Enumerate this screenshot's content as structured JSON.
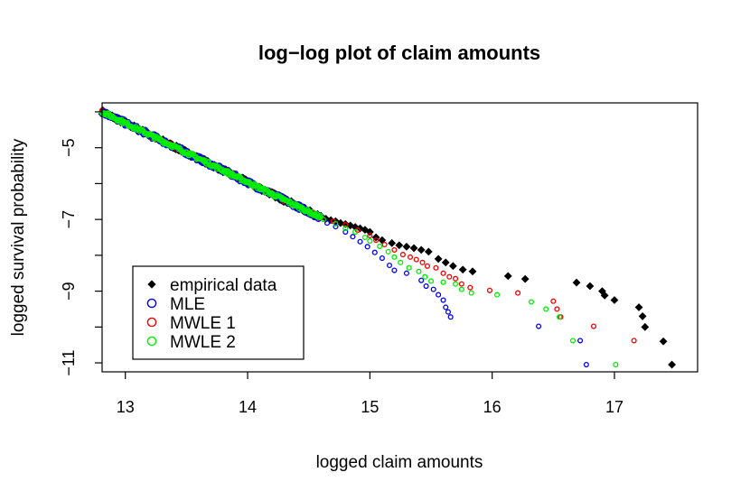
{
  "chart_data": {
    "type": "scatter",
    "title": "log−log plot of claim amounts",
    "xlabel": "logged claim amounts",
    "ylabel": "logged survival probability",
    "xlim": [
      12.81,
      17.68
    ],
    "ylim": [
      -11.25,
      -3.75
    ],
    "xticks": [
      13,
      14,
      15,
      16,
      17
    ],
    "yticks": [
      -5,
      -7,
      -9,
      -11
    ],
    "grid": false,
    "legend_position": "bottom-left",
    "dense_band": {
      "start": [
        12.81,
        -4.0
      ],
      "end": [
        14.6,
        -6.95
      ],
      "noise": [
        0.06,
        0.09,
        0.05,
        0.05
      ]
    },
    "series": [
      {
        "name": "empirical data",
        "marker": "filled-diamond",
        "color": "#000000",
        "tail": [
          [
            14.6,
            -6.9
          ],
          [
            14.64,
            -6.98
          ],
          [
            14.68,
            -7.02
          ],
          [
            14.72,
            -7.05
          ],
          [
            14.76,
            -7.1
          ],
          [
            14.8,
            -7.13
          ],
          [
            14.84,
            -7.17
          ],
          [
            14.88,
            -7.21
          ],
          [
            14.92,
            -7.25
          ],
          [
            14.96,
            -7.29
          ],
          [
            15.0,
            -7.35
          ],
          [
            15.05,
            -7.5
          ],
          [
            15.1,
            -7.58
          ],
          [
            15.18,
            -7.66
          ],
          [
            15.24,
            -7.72
          ],
          [
            15.3,
            -7.76
          ],
          [
            15.36,
            -7.8
          ],
          [
            15.42,
            -7.85
          ],
          [
            15.48,
            -7.9
          ],
          [
            15.56,
            -8.1
          ],
          [
            15.62,
            -8.2
          ],
          [
            15.68,
            -8.3
          ],
          [
            15.76,
            -8.4
          ],
          [
            15.84,
            -8.45
          ],
          [
            16.13,
            -8.58
          ],
          [
            16.27,
            -8.66
          ],
          [
            16.69,
            -8.76
          ],
          [
            16.8,
            -8.86
          ],
          [
            16.9,
            -9.0
          ],
          [
            16.92,
            -9.12
          ],
          [
            17.0,
            -9.25
          ],
          [
            17.2,
            -9.45
          ],
          [
            17.23,
            -9.7
          ],
          [
            17.25,
            -10.0
          ],
          [
            17.4,
            -10.4
          ],
          [
            17.47,
            -11.05
          ]
        ]
      },
      {
        "name": "MLE",
        "marker": "open-circle",
        "color": "#0000ee",
        "tail": [
          [
            14.65,
            -7.1
          ],
          [
            14.72,
            -7.2
          ],
          [
            14.8,
            -7.35
          ],
          [
            14.86,
            -7.48
          ],
          [
            14.92,
            -7.62
          ],
          [
            14.98,
            -7.76
          ],
          [
            15.04,
            -7.92
          ],
          [
            15.1,
            -8.08
          ],
          [
            15.16,
            -8.28
          ],
          [
            15.2,
            -8.42
          ],
          [
            15.3,
            -8.5
          ],
          [
            15.42,
            -8.7
          ],
          [
            15.46,
            -8.86
          ],
          [
            15.52,
            -8.95
          ],
          [
            15.56,
            -9.1
          ],
          [
            15.6,
            -9.25
          ],
          [
            15.62,
            -9.45
          ],
          [
            15.64,
            -9.58
          ],
          [
            15.66,
            -9.72
          ],
          [
            16.38,
            -9.98
          ],
          [
            16.72,
            -10.38
          ],
          [
            16.77,
            -11.05
          ]
        ]
      },
      {
        "name": "MWLE 1",
        "marker": "open-circle",
        "color": "#ee0000",
        "tail": [
          [
            14.7,
            -7.05
          ],
          [
            14.8,
            -7.15
          ],
          [
            14.9,
            -7.3
          ],
          [
            15.0,
            -7.45
          ],
          [
            15.05,
            -7.58
          ],
          [
            15.12,
            -7.7
          ],
          [
            15.2,
            -7.85
          ],
          [
            15.27,
            -7.98
          ],
          [
            15.33,
            -8.05
          ],
          [
            15.38,
            -8.12
          ],
          [
            15.43,
            -8.2
          ],
          [
            15.47,
            -8.3
          ],
          [
            15.54,
            -8.35
          ],
          [
            15.6,
            -8.5
          ],
          [
            15.65,
            -8.6
          ],
          [
            15.7,
            -8.65
          ],
          [
            15.75,
            -8.8
          ],
          [
            15.82,
            -8.9
          ],
          [
            15.98,
            -8.98
          ],
          [
            16.21,
            -9.05
          ],
          [
            16.5,
            -9.28
          ],
          [
            16.53,
            -9.5
          ],
          [
            16.56,
            -9.72
          ],
          [
            16.83,
            -9.98
          ],
          [
            17.16,
            -10.38
          ]
        ]
      },
      {
        "name": "MWLE 2",
        "marker": "open-circle",
        "color": "#00ee00",
        "tail": [
          [
            14.62,
            -7.0
          ],
          [
            14.72,
            -7.12
          ],
          [
            14.8,
            -7.25
          ],
          [
            14.88,
            -7.35
          ],
          [
            14.96,
            -7.5
          ],
          [
            15.0,
            -7.6
          ],
          [
            15.08,
            -7.75
          ],
          [
            15.15,
            -7.9
          ],
          [
            15.2,
            -8.05
          ],
          [
            15.25,
            -8.2
          ],
          [
            15.32,
            -8.35
          ],
          [
            15.4,
            -8.45
          ],
          [
            15.45,
            -8.6
          ],
          [
            15.5,
            -8.72
          ],
          [
            15.6,
            -8.75
          ],
          [
            15.7,
            -8.8
          ],
          [
            15.75,
            -8.95
          ],
          [
            15.83,
            -9.05
          ],
          [
            16.04,
            -9.1
          ],
          [
            16.32,
            -9.3
          ],
          [
            16.44,
            -9.5
          ],
          [
            16.55,
            -9.72
          ],
          [
            16.66,
            -10.38
          ],
          [
            17.01,
            -11.05
          ]
        ]
      }
    ]
  }
}
